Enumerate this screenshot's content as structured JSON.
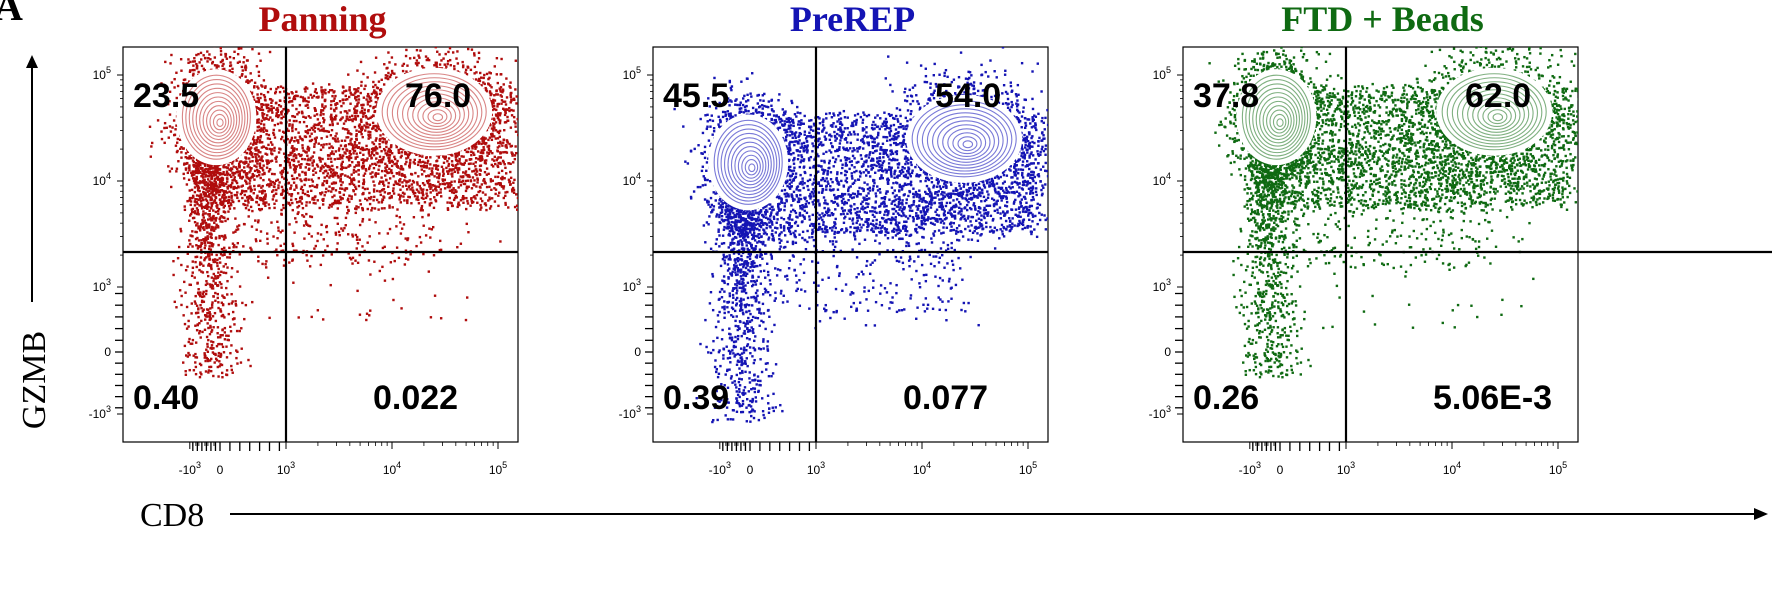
{
  "figure": {
    "panel_letter": "A",
    "ylabel": "GZMB",
    "xlabel": "CD8"
  },
  "chart_data": [
    {
      "type": "scatter",
      "title": "Panning",
      "color": "#b00d0d",
      "contour_color": "#d98585",
      "xlabel": "CD8",
      "ylabel": "GZMB",
      "x_ticks": [
        "-10^3",
        "0",
        "10^3",
        "10^4",
        "10^5"
      ],
      "y_ticks": [
        "10^5",
        "10^4",
        "10^3",
        "0",
        "-10^3"
      ],
      "quadrants": {
        "top_left": "23.5",
        "top_right": "76.0",
        "bottom_left": "0.40",
        "bottom_right": "0.022"
      },
      "populations": [
        {
          "x_center": -120,
          "y_center": 40000,
          "share": 0.235
        },
        {
          "x_center": 25000,
          "y_center": 45000,
          "share": 0.76
        }
      ]
    },
    {
      "type": "scatter",
      "title": "PreREP",
      "color": "#1414b4",
      "contour_color": "#7a7ad8",
      "xlabel": "CD8",
      "ylabel": "GZMB",
      "x_ticks": [
        "-10^3",
        "0",
        "10^3",
        "10^4",
        "10^5"
      ],
      "y_ticks": [
        "10^5",
        "10^4",
        "10^3",
        "0",
        "-10^3"
      ],
      "quadrants": {
        "top_left": "45.5",
        "top_right": "54.0",
        "bottom_left": "0.39",
        "bottom_right": "0.077"
      },
      "populations": [
        {
          "x_center": -60,
          "y_center": 15000,
          "share": 0.455
        },
        {
          "x_center": 25000,
          "y_center": 25000,
          "share": 0.54
        }
      ]
    },
    {
      "type": "scatter",
      "title": "FTD + Beads",
      "color": "#0f6a12",
      "contour_color": "#7fb080",
      "xlabel": "CD8",
      "ylabel": "GZMB",
      "x_ticks": [
        "-10^3",
        "0",
        "10^3",
        "10^4",
        "10^5"
      ],
      "y_ticks": [
        "10^5",
        "10^4",
        "10^3",
        "0",
        "-10^3"
      ],
      "quadrants": {
        "top_left": "37.8",
        "top_right": "62.0",
        "bottom_left": "0.26",
        "bottom_right": "5.06E-3"
      },
      "populations": [
        {
          "x_center": -120,
          "y_center": 40000,
          "share": 0.378
        },
        {
          "x_center": 25000,
          "y_center": 45000,
          "share": 0.62
        }
      ]
    }
  ]
}
